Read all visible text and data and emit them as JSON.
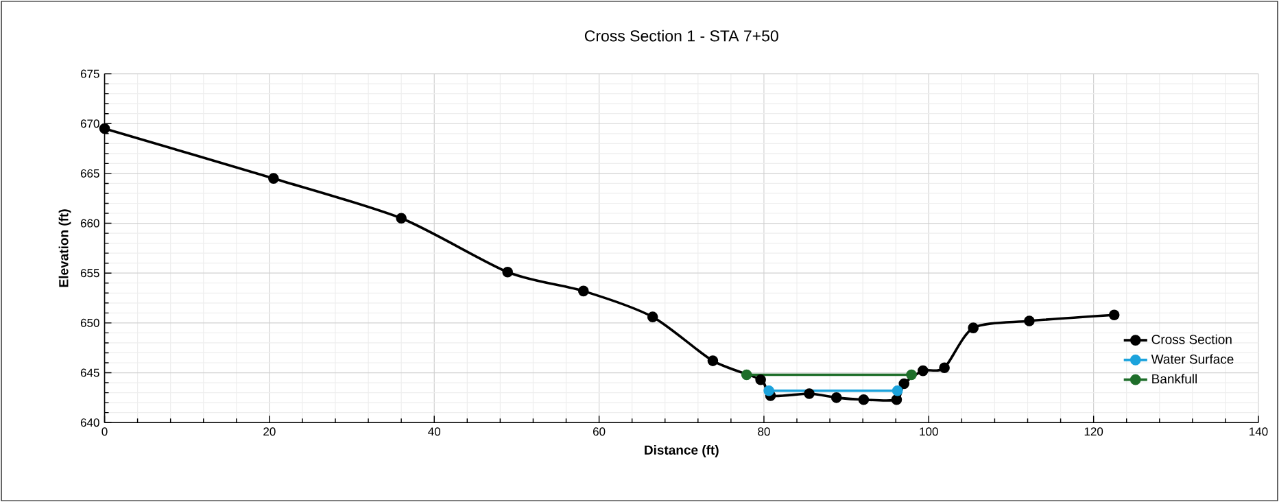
{
  "chart_data": {
    "type": "line",
    "title": "Cross Section 1 - STA 7+50",
    "xlabel": "Distance (ft)",
    "ylabel": "Elevation (ft)",
    "xlim": [
      0,
      140
    ],
    "ylim": [
      640,
      675
    ],
    "xticks": [
      0,
      20,
      40,
      60,
      80,
      100,
      120,
      140
    ],
    "yticks": [
      640,
      645,
      650,
      655,
      660,
      665,
      670,
      675
    ],
    "grid": true,
    "legend": "bottom right",
    "marker": "circle",
    "line_style": "solid",
    "series": [
      {
        "name": "Cross Section",
        "color": "#000000",
        "x": [
          0,
          20.5,
          36.0,
          48.9,
          58.1,
          66.5,
          73.8,
          79.6,
          80.8,
          85.5,
          88.8,
          92.1,
          96.1,
          97.0,
          99.3,
          101.9,
          105.4,
          112.2,
          122.5
        ],
        "values": [
          669.5,
          664.5,
          660.5,
          655.1,
          653.2,
          650.6,
          646.2,
          644.3,
          642.7,
          642.9,
          642.5,
          642.3,
          642.3,
          643.9,
          645.2,
          645.5,
          649.5,
          650.2,
          650.8
        ]
      },
      {
        "name": "Water Surface",
        "color": "#1ca3dc",
        "x": [
          80.6,
          96.2
        ],
        "values": [
          643.2,
          643.2
        ]
      },
      {
        "name": "Bankfull",
        "color": "#1e6e2a",
        "x": [
          77.9,
          97.9
        ],
        "values": [
          644.8,
          644.8
        ]
      }
    ]
  }
}
